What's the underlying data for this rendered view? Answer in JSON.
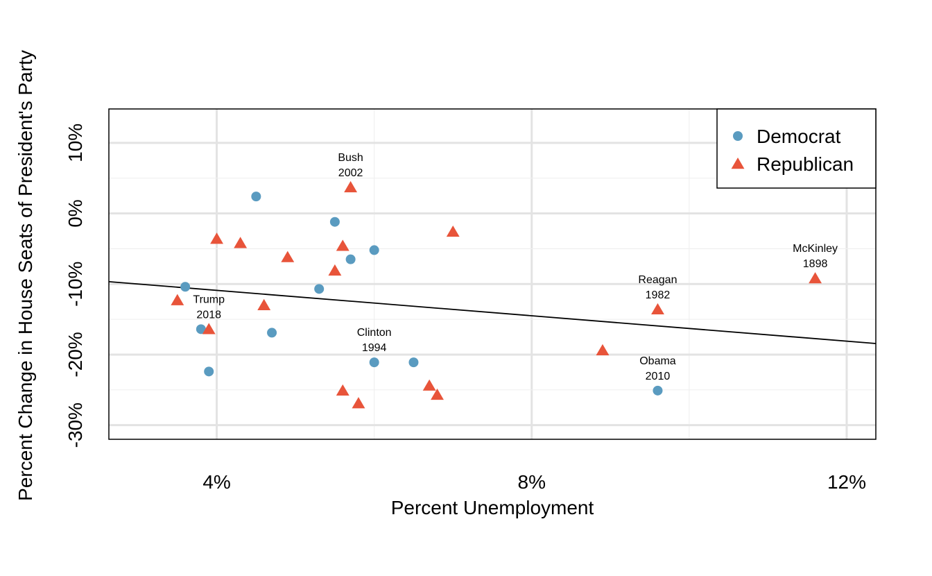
{
  "chart_data": {
    "type": "scatter",
    "xlabel": "Percent Unemployment",
    "ylabel": "Percent Change in House Seats of President's Party",
    "xlim": [
      2.63,
      12.37
    ],
    "ylim": [
      -32,
      14.8
    ],
    "x_ticks": [
      4,
      8,
      12
    ],
    "x_tick_labels": [
      "4%",
      "8%",
      "12%"
    ],
    "y_ticks": [
      10,
      0,
      -10,
      -20,
      -30
    ],
    "y_tick_labels": [
      "10%",
      "0%",
      "-10%",
      "-20%",
      "-30%"
    ],
    "grid": true,
    "legend_position": "top-right",
    "series": [
      {
        "name": "Democrat",
        "color": "#5a9bc0",
        "marker": "circle",
        "points": [
          {
            "x": 4.5,
            "y": 2.4
          },
          {
            "x": 3.6,
            "y": -10.4
          },
          {
            "x": 3.8,
            "y": -16.4
          },
          {
            "x": 3.9,
            "y": -22.4
          },
          {
            "x": 4.7,
            "y": -16.9
          },
          {
            "x": 5.3,
            "y": -10.7
          },
          {
            "x": 5.5,
            "y": -1.2
          },
          {
            "x": 5.7,
            "y": -6.5
          },
          {
            "x": 6.0,
            "y": -5.2
          },
          {
            "x": 6.0,
            "y": -21.1
          },
          {
            "x": 6.5,
            "y": -21.1
          },
          {
            "x": 9.6,
            "y": -25.1
          }
        ]
      },
      {
        "name": "Republican",
        "color": "#e8543a",
        "marker": "triangle",
        "points": [
          {
            "x": 3.5,
            "y": -12.3
          },
          {
            "x": 3.9,
            "y": -16.4
          },
          {
            "x": 4.0,
            "y": -3.6
          },
          {
            "x": 4.3,
            "y": -4.2
          },
          {
            "x": 4.6,
            "y": -13.0
          },
          {
            "x": 4.9,
            "y": -6.2
          },
          {
            "x": 5.5,
            "y": -8.1
          },
          {
            "x": 5.6,
            "y": -4.6
          },
          {
            "x": 5.7,
            "y": 3.7
          },
          {
            "x": 5.6,
            "y": -25.1
          },
          {
            "x": 5.8,
            "y": -26.9
          },
          {
            "x": 6.7,
            "y": -24.4
          },
          {
            "x": 6.8,
            "y": -25.7
          },
          {
            "x": 7.0,
            "y": -2.6
          },
          {
            "x": 8.9,
            "y": -19.4
          },
          {
            "x": 9.6,
            "y": -13.6
          },
          {
            "x": 11.6,
            "y": -9.2
          }
        ]
      }
    ],
    "annotations": [
      {
        "line1": "Bush",
        "line2": "2002",
        "x": 5.7,
        "y": 3.7
      },
      {
        "line1": "Trump",
        "line2": "2018",
        "x": 3.9,
        "y": -16.4
      },
      {
        "line1": "Clinton",
        "line2": "1994",
        "x": 6.0,
        "y": -21.1
      },
      {
        "line1": "Obama",
        "line2": "2010",
        "x": 9.6,
        "y": -25.1
      },
      {
        "line1": "Reagan",
        "line2": "1982",
        "x": 9.6,
        "y": -13.6
      },
      {
        "line1": "McKinley",
        "line2": "1898",
        "x": 11.6,
        "y": -9.2
      }
    ],
    "trend_line": {
      "intercept": -7.3,
      "slope": -0.9
    }
  }
}
